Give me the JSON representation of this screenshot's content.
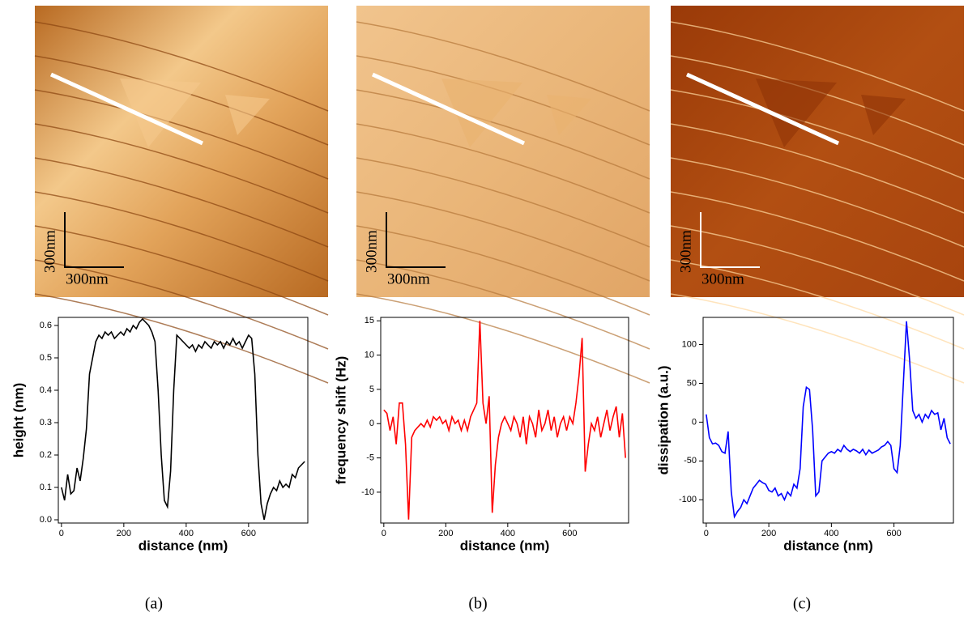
{
  "panels": [
    {
      "label": "(a)",
      "scale_x": "300nm",
      "scale_y": "300nm"
    },
    {
      "label": "(b)",
      "scale_x": "300nm",
      "scale_y": "300nm"
    },
    {
      "label": "(c)",
      "scale_x": "300nm",
      "scale_y": "300nm"
    }
  ],
  "chart_data": [
    {
      "type": "line",
      "xlabel": "distance (nm)",
      "ylabel": "height (nm)",
      "x": [
        0,
        10,
        20,
        30,
        40,
        50,
        60,
        70,
        80,
        90,
        100,
        110,
        120,
        130,
        140,
        150,
        160,
        170,
        180,
        190,
        200,
        210,
        220,
        230,
        240,
        250,
        260,
        270,
        280,
        290,
        300,
        310,
        320,
        330,
        340,
        350,
        360,
        370,
        380,
        390,
        400,
        410,
        420,
        430,
        440,
        450,
        460,
        470,
        480,
        490,
        500,
        510,
        520,
        530,
        540,
        550,
        560,
        570,
        580,
        590,
        600,
        610,
        620,
        630,
        640,
        650,
        660,
        670,
        680,
        690,
        700,
        710,
        720,
        730,
        740,
        750,
        760,
        770,
        780
      ],
      "series": [
        {
          "color": "#000000",
          "values": [
            0.1,
            0.06,
            0.14,
            0.08,
            0.09,
            0.16,
            0.12,
            0.19,
            0.28,
            0.45,
            0.5,
            0.55,
            0.57,
            0.56,
            0.58,
            0.57,
            0.58,
            0.56,
            0.57,
            0.58,
            0.57,
            0.59,
            0.58,
            0.6,
            0.59,
            0.61,
            0.62,
            0.61,
            0.6,
            0.58,
            0.55,
            0.4,
            0.2,
            0.06,
            0.04,
            0.15,
            0.4,
            0.57,
            0.56,
            0.55,
            0.54,
            0.53,
            0.54,
            0.52,
            0.54,
            0.53,
            0.55,
            0.54,
            0.53,
            0.55,
            0.54,
            0.55,
            0.53,
            0.55,
            0.54,
            0.56,
            0.54,
            0.55,
            0.53,
            0.55,
            0.57,
            0.56,
            0.45,
            0.2,
            0.05,
            0.0,
            0.05,
            0.08,
            0.1,
            0.09,
            0.12,
            0.1,
            0.11,
            0.1,
            0.14,
            0.13,
            0.16,
            0.17,
            0.18
          ]
        }
      ],
      "xlim": [
        -10,
        790
      ],
      "xticks": [
        0,
        200,
        400,
        600
      ],
      "ylim": [
        -0.01,
        0.625
      ],
      "yticks": [
        {
          "value": 0,
          "label": "0.0"
        },
        0.1,
        0.2,
        0.3,
        0.4,
        0.5,
        0.6
      ]
    },
    {
      "type": "line",
      "xlabel": "distance (nm)",
      "ylabel": "frequency shift (Hz)",
      "x": [
        0,
        10,
        20,
        30,
        40,
        50,
        60,
        70,
        80,
        90,
        100,
        110,
        120,
        130,
        140,
        150,
        160,
        170,
        180,
        190,
        200,
        210,
        220,
        230,
        240,
        250,
        260,
        270,
        280,
        290,
        300,
        310,
        320,
        330,
        340,
        350,
        360,
        370,
        380,
        390,
        400,
        410,
        420,
        430,
        440,
        450,
        460,
        470,
        480,
        490,
        500,
        510,
        520,
        530,
        540,
        550,
        560,
        570,
        580,
        590,
        600,
        610,
        620,
        630,
        640,
        650,
        660,
        670,
        680,
        690,
        700,
        710,
        720,
        730,
        740,
        750,
        760,
        770,
        780
      ],
      "series": [
        {
          "color": "#ff0000",
          "values": [
            2,
            1.5,
            -1,
            1,
            -3,
            3,
            3,
            -3,
            -14,
            -2,
            -1,
            -0.5,
            0,
            -0.5,
            0.5,
            -0.5,
            1,
            0.5,
            1,
            0,
            0.5,
            -1,
            1,
            0,
            0.5,
            -1,
            0.5,
            -1,
            1,
            2,
            3,
            15,
            3,
            0,
            4,
            -13,
            -6,
            -2,
            0,
            1,
            0,
            -1,
            1,
            0,
            -2,
            1,
            -3,
            1,
            0,
            -2,
            2,
            -1,
            0,
            2,
            -1,
            1,
            -2,
            0,
            1,
            -1,
            1,
            0,
            3,
            7,
            12.5,
            -7,
            -3,
            0,
            -1,
            1,
            -2,
            0,
            2,
            -1,
            1,
            2.5,
            -2,
            1.5,
            -5
          ]
        }
      ],
      "xlim": [
        -10,
        790
      ],
      "xticks": [
        0,
        200,
        400,
        600
      ],
      "ylim": [
        -14.5,
        15.5
      ],
      "yticks": [
        -10,
        -5,
        0,
        5,
        10,
        15
      ]
    },
    {
      "type": "line",
      "xlabel": "distance (nm)",
      "ylabel": "dissipation (a.u.)",
      "x": [
        0,
        10,
        20,
        30,
        40,
        50,
        60,
        70,
        80,
        90,
        100,
        110,
        120,
        130,
        140,
        150,
        160,
        170,
        180,
        190,
        200,
        210,
        220,
        230,
        240,
        250,
        260,
        270,
        280,
        290,
        300,
        310,
        320,
        330,
        340,
        350,
        360,
        370,
        380,
        390,
        400,
        410,
        420,
        430,
        440,
        450,
        460,
        470,
        480,
        490,
        500,
        510,
        520,
        530,
        540,
        550,
        560,
        570,
        580,
        590,
        600,
        610,
        620,
        630,
        640,
        650,
        660,
        670,
        680,
        690,
        700,
        710,
        720,
        730,
        740,
        750,
        760,
        770,
        780
      ],
      "series": [
        {
          "color": "#0000ff",
          "values": [
            10,
            -20,
            -28,
            -27,
            -30,
            -38,
            -40,
            -12,
            -90,
            -122,
            -115,
            -110,
            -100,
            -105,
            -95,
            -85,
            -80,
            -75,
            -78,
            -80,
            -88,
            -90,
            -85,
            -95,
            -92,
            -100,
            -90,
            -95,
            -80,
            -85,
            -60,
            20,
            45,
            42,
            -10,
            -95,
            -90,
            -50,
            -45,
            -40,
            -38,
            -40,
            -35,
            -38,
            -30,
            -35,
            -38,
            -35,
            -37,
            -40,
            -35,
            -42,
            -36,
            -40,
            -38,
            -36,
            -32,
            -30,
            -25,
            -30,
            -60,
            -65,
            -30,
            50,
            130,
            80,
            15,
            5,
            10,
            0,
            10,
            5,
            15,
            10,
            12,
            -10,
            5,
            -20,
            -28
          ]
        }
      ],
      "xlim": [
        -10,
        790
      ],
      "xticks": [
        0,
        200,
        400,
        600
      ],
      "ylim": [
        -130,
        135
      ],
      "yticks": [
        -100,
        -50,
        0,
        50,
        100
      ]
    }
  ]
}
